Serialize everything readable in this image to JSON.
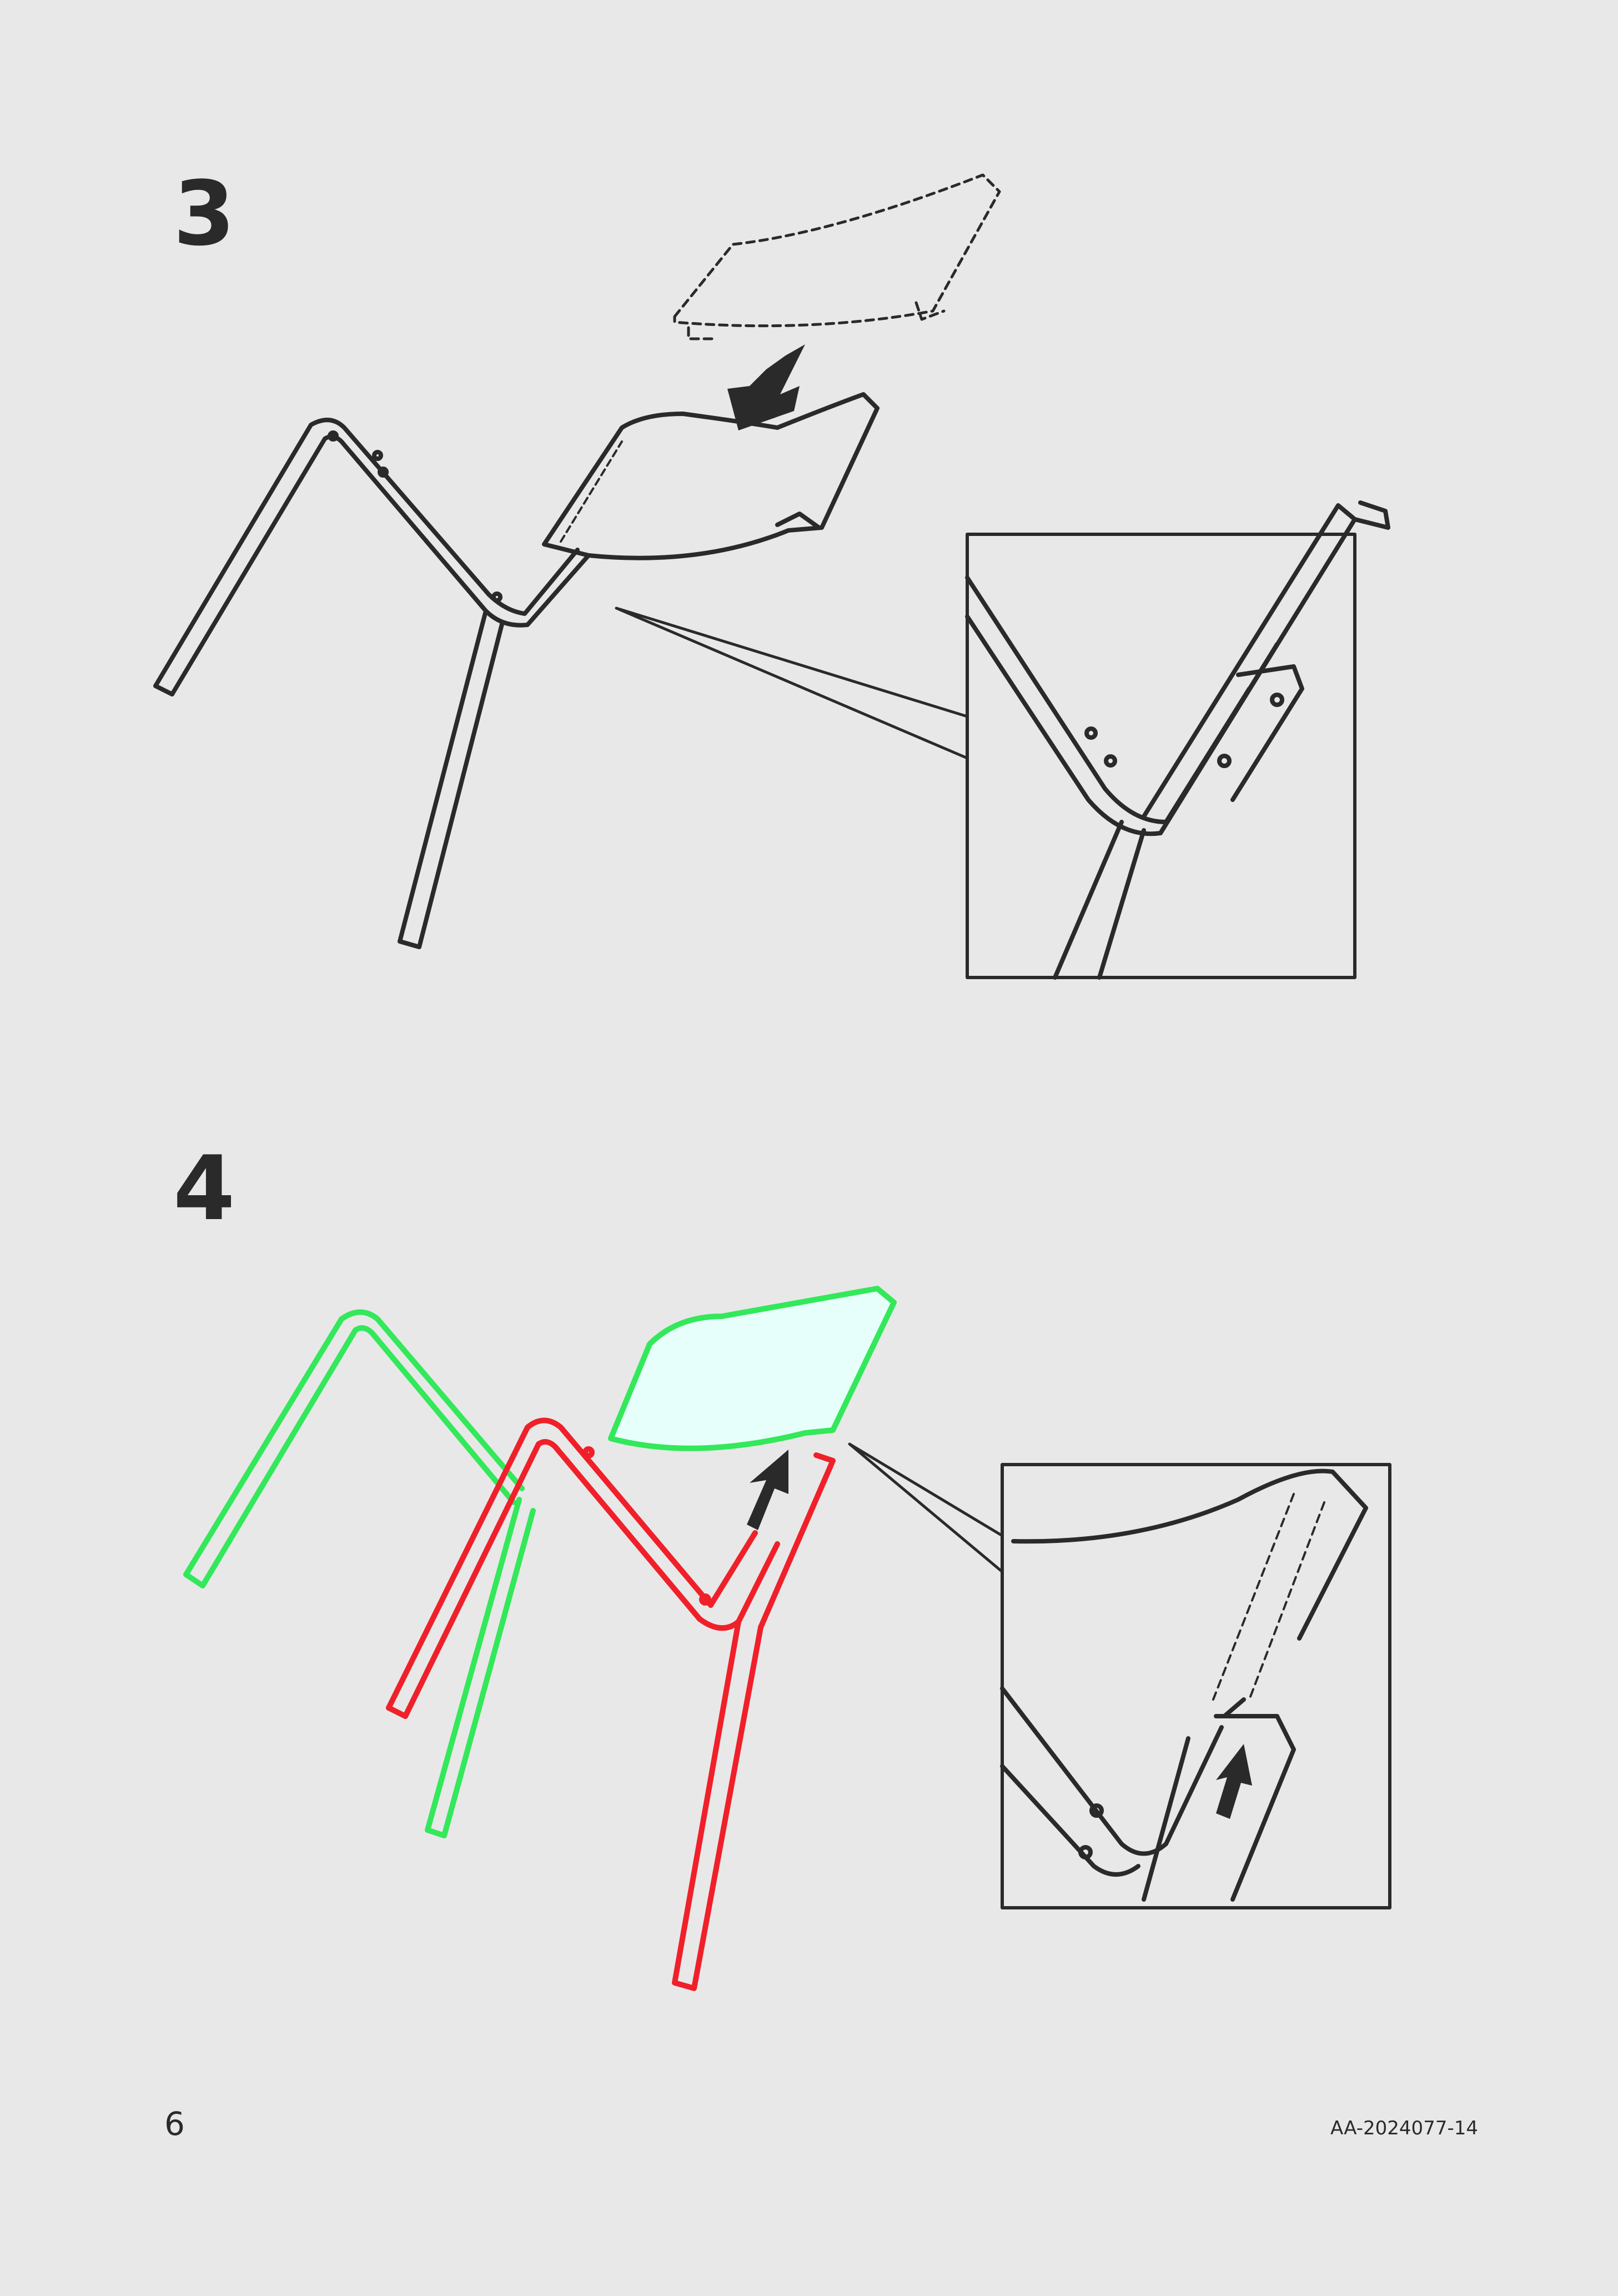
{
  "steps": [
    {
      "number": "3"
    },
    {
      "number": "4"
    }
  ],
  "footer": {
    "page_number": "6",
    "document_code": "AA-2024077-14"
  },
  "colors": {
    "background": "#e8e8e8",
    "line": "#2a2a2a",
    "highlight_green": "#33e85a",
    "highlight_red": "#f0202a",
    "seat_fill": "#e6fffb"
  }
}
